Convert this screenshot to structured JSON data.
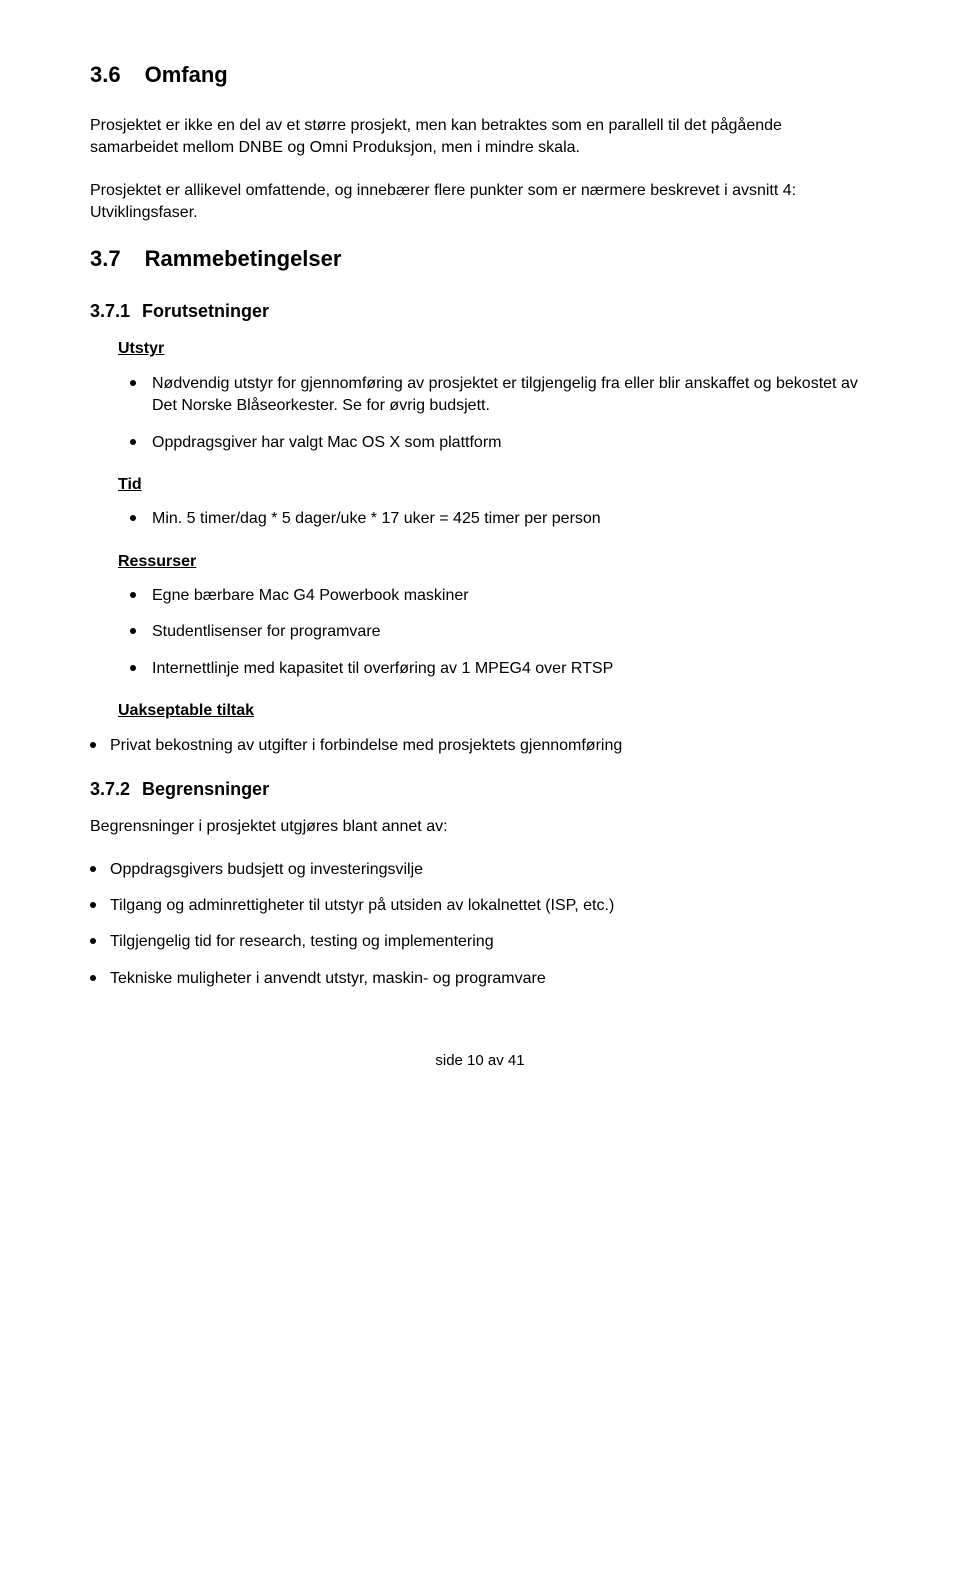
{
  "s36": {
    "num": "3.6",
    "title": "Omfang",
    "p1": "Prosjektet er ikke en del av et større prosjekt, men kan betraktes som en parallell til det pågående samarbeidet mellom DNBE og Omni Produksjon, men i mindre skala.",
    "p2": "Prosjektet er allikevel omfattende, og innebærer flere punkter som er nærmere beskrevet i avsnitt 4: Utviklingsfaser."
  },
  "s37": {
    "num": "3.7",
    "title": "Rammebetingelser"
  },
  "s371": {
    "num": "3.7.1",
    "title": "Forutsetninger",
    "utstyr_label": "Utstyr",
    "utstyr_items": [
      "Nødvendig utstyr for gjennomføring av prosjektet er tilgjengelig fra eller blir anskaffet og bekostet av Det Norske Blåseorkester. Se for øvrig budsjett.",
      "Oppdragsgiver har valgt Mac OS X som plattform"
    ],
    "tid_label": "Tid",
    "tid_items": [
      "Min. 5 timer/dag * 5 dager/uke * 17 uker = 425 timer per person"
    ],
    "ressurser_label": "Ressurser",
    "ressurser_items": [
      "Egne bærbare Mac G4 Powerbook maskiner",
      "Studentlisenser for programvare",
      "Internettlinje med kapasitet til overføring av 1 MPEG4 over RTSP"
    ],
    "uakseptable_label": "Uakseptable tiltak",
    "uakseptable_items": [
      "Privat bekostning av utgifter i forbindelse med prosjektets gjennomføring"
    ]
  },
  "s372": {
    "num": "3.7.2",
    "title": "Begrensninger",
    "intro": "Begrensninger i prosjektet utgjøres blant annet av:",
    "items": [
      "Oppdragsgivers budsjett og investeringsvilje",
      "Tilgang og adminrettigheter til utstyr på utsiden av lokalnettet (ISP, etc.)",
      "Tilgjengelig tid for research, testing og implementering",
      "Tekniske muligheter i anvendt utstyr, maskin- og programvare"
    ]
  },
  "footer": "side 10 av 41"
}
